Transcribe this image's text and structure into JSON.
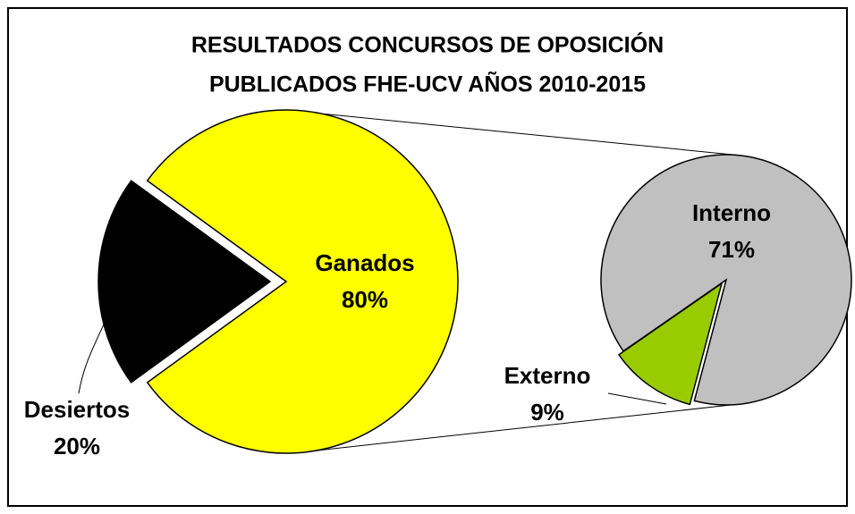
{
  "chart_data": {
    "type": "pie_of_pie",
    "title_lines": [
      "RESULTADOS CONCURSOS DE OPOSICIÓN",
      "PUBLICADOS FHE-UCV AÑOS 2010-2015"
    ],
    "main": {
      "categories": [
        "Ganados",
        "Desiertos"
      ],
      "values": [
        80,
        20
      ],
      "value_labels": [
        "80%",
        "20%"
      ],
      "colors": [
        "#ffff00",
        "#000000"
      ]
    },
    "secondary": {
      "categories": [
        "Interno",
        "Externo"
      ],
      "values": [
        71,
        9
      ],
      "value_labels": [
        "71%",
        "9%"
      ],
      "colors": [
        "#c0c0c0",
        "#99cc00"
      ]
    }
  }
}
